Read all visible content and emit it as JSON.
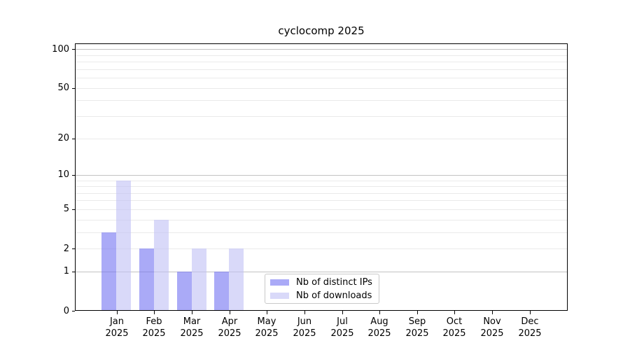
{
  "chart_data": {
    "type": "bar",
    "title": "cyclocomp 2025",
    "categories": [
      "Jan 2025",
      "Feb 2025",
      "Mar 2025",
      "Apr 2025",
      "May 2025",
      "Jun 2025",
      "Jul 2025",
      "Aug 2025",
      "Sep 2025",
      "Oct 2025",
      "Nov 2025",
      "Dec 2025"
    ],
    "x_ticks": [
      {
        "month": "Jan",
        "year": "2025"
      },
      {
        "month": "Feb",
        "year": "2025"
      },
      {
        "month": "Mar",
        "year": "2025"
      },
      {
        "month": "Apr",
        "year": "2025"
      },
      {
        "month": "May",
        "year": "2025"
      },
      {
        "month": "Jun",
        "year": "2025"
      },
      {
        "month": "Jul",
        "year": "2025"
      },
      {
        "month": "Aug",
        "year": "2025"
      },
      {
        "month": "Sep",
        "year": "2025"
      },
      {
        "month": "Oct",
        "year": "2025"
      },
      {
        "month": "Nov",
        "year": "2025"
      },
      {
        "month": "Dec",
        "year": "2025"
      }
    ],
    "series": [
      {
        "name": "Nb of distinct IPs",
        "color": "rgba(113,113,242,0.6)",
        "values": [
          3,
          2,
          1,
          1,
          0,
          0,
          0,
          0,
          0,
          0,
          0,
          0
        ]
      },
      {
        "name": "Nb of downloads",
        "color": "rgba(192,192,245,0.6)",
        "values": [
          9,
          4,
          2,
          2,
          0,
          0,
          0,
          0,
          0,
          0,
          0,
          0
        ]
      }
    ],
    "y_axis": {
      "scale": "log1p",
      "lim": [
        0,
        111
      ],
      "tick_values": [
        0,
        1,
        2,
        5,
        10,
        20,
        50,
        100
      ],
      "tick_labels": [
        "0",
        "1",
        "2",
        "5",
        "10",
        "20",
        "50",
        "100"
      ],
      "major_gridlines": [
        1,
        10,
        100
      ],
      "minor_gridlines": [
        2,
        3,
        4,
        5,
        6,
        7,
        8,
        9,
        20,
        30,
        40,
        50,
        60,
        70,
        80,
        90
      ]
    },
    "grid": true,
    "legend_position": "lower center",
    "colors": {
      "major_gridline": "#c3c3c3",
      "minor_gridline": "#eaeaea",
      "spine": "#000000",
      "text": "#000000",
      "legend_border": "#c9c9c9",
      "background": "#ffffff"
    }
  }
}
